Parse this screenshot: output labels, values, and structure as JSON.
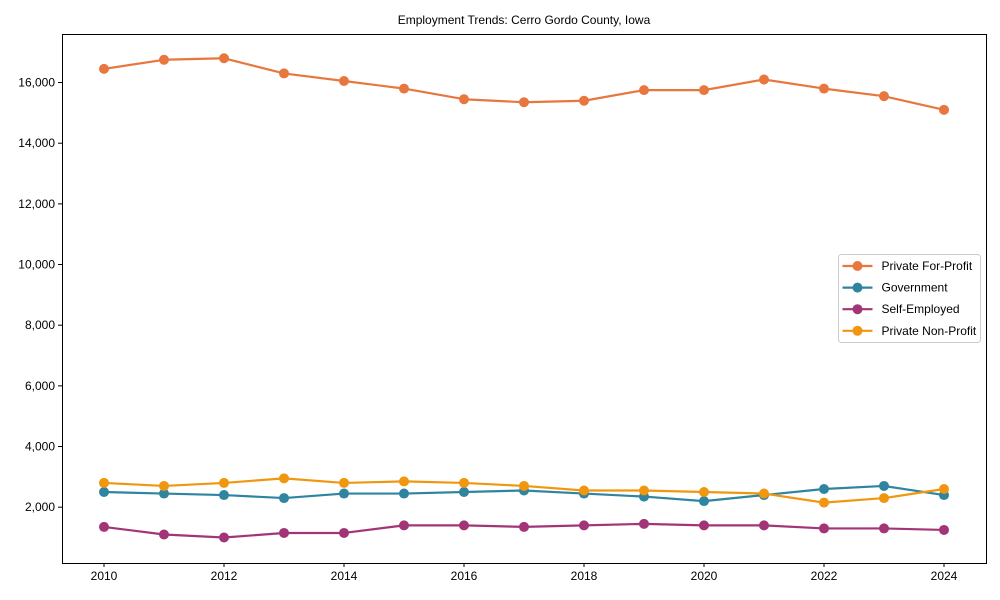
{
  "figure": {
    "background": "#ffffff",
    "border_color": "#000000",
    "legend_border_color": "#cccccc"
  },
  "chart_data": {
    "type": "line",
    "title": "Employment Trends: Cerro Gordo County, Iowa",
    "xlabel": "",
    "ylabel": "",
    "x": [
      2010,
      2011,
      2012,
      2013,
      2014,
      2015,
      2016,
      2017,
      2018,
      2019,
      2020,
      2021,
      2022,
      2023,
      2024
    ],
    "series": [
      {
        "name": "Private For-Profit",
        "color": "#E8773F",
        "values": [
          16450,
          16750,
          16800,
          16300,
          16050,
          15800,
          15450,
          15350,
          15400,
          15750,
          15750,
          16100,
          15800,
          15550,
          15100
        ]
      },
      {
        "name": "Government",
        "color": "#2F84A0",
        "values": [
          2500,
          2450,
          2400,
          2300,
          2450,
          2450,
          2500,
          2550,
          2450,
          2350,
          2200,
          2400,
          2600,
          2700,
          2400
        ]
      },
      {
        "name": "Self-Employed",
        "color": "#A23578",
        "values": [
          1350,
          1100,
          1000,
          1150,
          1150,
          1400,
          1400,
          1350,
          1400,
          1450,
          1400,
          1400,
          1300,
          1300,
          1250
        ]
      },
      {
        "name": "Private Non-Profit",
        "color": "#F0970F",
        "values": [
          2800,
          2700,
          2800,
          2950,
          2800,
          2850,
          2800,
          2700,
          2550,
          2550,
          2500,
          2450,
          2150,
          2300,
          2600
        ]
      }
    ],
    "xlim": [
      2009.3,
      2024.7
    ],
    "ylim": [
      160,
      17600
    ],
    "x_ticks": [
      2010,
      2012,
      2014,
      2016,
      2018,
      2020,
      2022,
      2024
    ],
    "y_ticks": [
      2000,
      4000,
      6000,
      8000,
      10000,
      12000,
      14000,
      16000
    ],
    "grid": false,
    "legend_position": "center-right",
    "marker": "circle"
  }
}
